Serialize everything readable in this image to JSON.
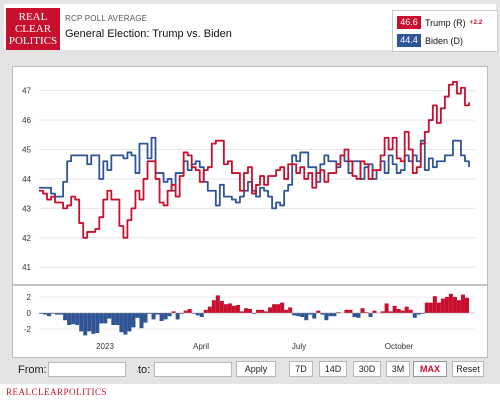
{
  "header": {
    "logo_lines": [
      "REAL",
      "CLEAR",
      "POLITICS"
    ],
    "kicker": "RCP POLL AVERAGE",
    "title": "General Election: Trump vs. Biden"
  },
  "legend": {
    "trump": {
      "value": "46.6",
      "label": "Trump (R)",
      "change": "+2.2",
      "color": "#c8102e"
    },
    "biden": {
      "value": "44.4",
      "label": "Biden (D)",
      "color": "#2f5597"
    }
  },
  "controls": {
    "from_label": "From:",
    "to_label": "to:",
    "apply_label": "Apply",
    "ranges": [
      "7D",
      "14D",
      "30D",
      "3M",
      "MAX",
      "Reset"
    ],
    "active_range": "MAX"
  },
  "footer": {
    "brand": "REALCLEARPOLITICS"
  },
  "chart_data": {
    "type": "line",
    "x_tick_labels": [
      "2023",
      "April",
      "July",
      "October"
    ],
    "y_ticks": [
      41,
      42,
      43,
      44,
      45,
      46,
      47
    ],
    "ylim": [
      40.6,
      47.6
    ],
    "spread_ticks": [
      2,
      0,
      -2
    ],
    "spread_ylim": [
      -3,
      3
    ],
    "series": [
      {
        "name": "Trump (R)",
        "color": "#c8102e",
        "values": [
          43.6,
          43.5,
          43.3,
          43.4,
          43.2,
          43.2,
          43.0,
          43.1,
          43.4,
          43.3,
          42.5,
          42.0,
          42.2,
          42.2,
          42.3,
          42.7,
          43.3,
          43.6,
          43.3,
          43.3,
          42.4,
          42.0,
          42.6,
          43.0,
          43.6,
          43.3,
          44.0,
          44.6,
          44.6,
          44.0,
          43.2,
          43.1,
          43.6,
          43.8,
          43.4,
          44.1,
          44.9,
          44.8,
          44.4,
          44.3,
          43.9,
          44.3,
          44.4,
          45.2,
          45.3,
          45.3,
          44.5,
          44.6,
          44.2,
          44.2,
          43.6,
          44.2,
          44.4,
          43.5,
          43.8,
          44.1,
          43.8,
          44.1,
          44.1,
          44.3,
          44.4,
          44.0,
          44.5,
          44.5,
          44.2,
          44.4,
          44.0,
          44.2,
          43.7,
          44.2,
          44.3,
          43.9,
          44.2,
          44.2,
          44.5,
          44.8,
          45.0,
          44.6,
          44.1,
          44.0,
          44.6,
          44.5,
          44.0,
          44.3,
          44.3,
          44.8,
          45.4,
          45.0,
          45.4,
          44.7,
          44.6,
          45.6,
          45.0,
          44.2,
          44.4,
          45.2,
          45.6,
          46.0,
          46.5,
          45.9,
          46.4,
          46.8,
          47.2,
          47.3,
          46.9,
          47.1,
          46.5,
          46.6
        ]
      },
      {
        "name": "Biden (D)",
        "color": "#2f5597",
        "values": [
          43.7,
          43.7,
          43.7,
          43.5,
          43.4,
          43.4,
          43.9,
          44.6,
          44.8,
          44.8,
          44.8,
          44.8,
          44.5,
          44.8,
          44.8,
          44.0,
          44.6,
          44.3,
          44.8,
          44.8,
          44.8,
          44.7,
          44.9,
          44.8,
          44.2,
          45.2,
          45.2,
          44.7,
          45.4,
          44.2,
          44.2,
          43.9,
          44.0,
          43.6,
          44.2,
          44.2,
          44.6,
          44.3,
          44.5,
          44.6,
          44.4,
          43.9,
          43.6,
          43.6,
          43.1,
          43.8,
          43.4,
          43.4,
          43.3,
          43.2,
          43.4,
          43.6,
          43.9,
          43.6,
          43.4,
          43.7,
          43.6,
          43.4,
          43.0,
          43.2,
          43.1,
          43.6,
          43.8,
          44.8,
          44.6,
          44.9,
          44.9,
          44.4,
          44.4,
          43.9,
          44.5,
          44.8,
          44.6,
          44.6,
          44.4,
          44.8,
          44.6,
          44.2,
          44.6,
          44.6,
          44.0,
          44.4,
          44.5,
          44.0,
          44.3,
          44.6,
          44.2,
          44.8,
          44.5,
          44.2,
          44.3,
          44.8,
          44.6,
          44.8,
          44.6,
          45.3,
          44.3,
          44.7,
          44.4,
          44.6,
          44.6,
          44.8,
          44.8,
          45.3,
          45.3,
          44.8,
          44.6,
          44.4
        ]
      }
    ]
  }
}
